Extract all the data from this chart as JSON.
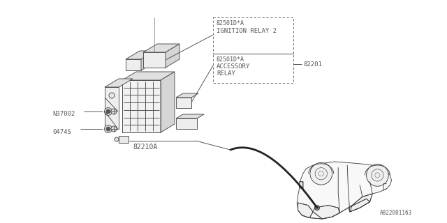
{
  "bg_color": "#ffffff",
  "lc": "#555555",
  "lc2": "#333333",
  "font": "monospace",
  "fs": 6.5,
  "diagram_label": "A822001163",
  "lbl_ign_part": "82501D*A",
  "lbl_ign_name": "IGNITION RELAY 2",
  "lbl_acc_part": "82501D*A",
  "lbl_acc_name1": "ACCESSORY",
  "lbl_acc_name2": "RELAY",
  "lbl_main": "82210A",
  "lbl_82201": "82201",
  "lbl_n37002": "N37002",
  "lbl_0474s": "0474S",
  "fig_width": 6.4,
  "fig_height": 3.2,
  "dpi": 100
}
